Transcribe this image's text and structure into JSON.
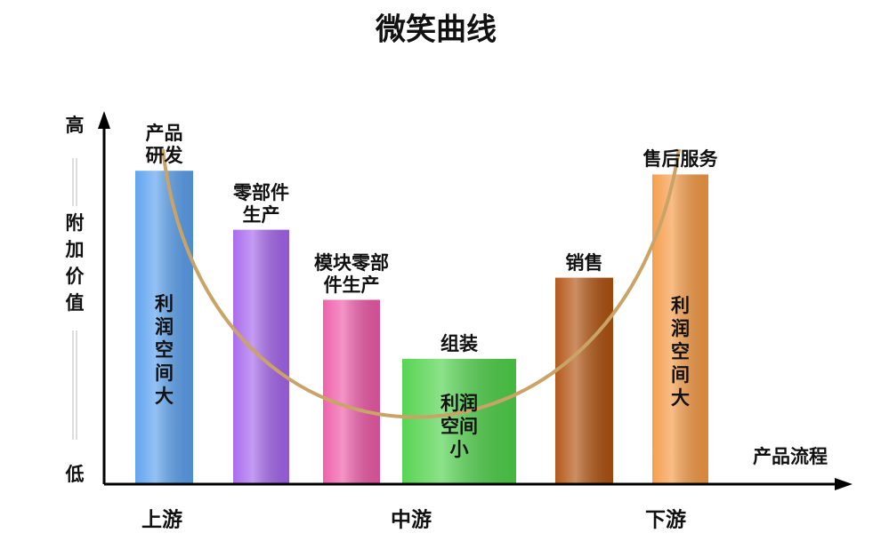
{
  "chart_data": {
    "type": "bar",
    "title": "微笑曲线",
    "categories": [
      "产品研发",
      "零部件生产",
      "模块零部件生产",
      "组装",
      "销售",
      "售后服务"
    ],
    "values": [
      85,
      69,
      50,
      34,
      56,
      84
    ],
    "colors": [
      "#5aa0ee",
      "#a565ec",
      "#ee5aa8",
      "#4fd24a",
      "#b0520f",
      "#f59a45"
    ],
    "bar_notes": [
      "利润空间大",
      null,
      null,
      "利润空间小",
      null,
      "利润空间大"
    ],
    "ylim": [
      0,
      100
    ],
    "y_axis_top": "高",
    "y_axis_label": "附加价值",
    "y_axis_bottom": "低",
    "x_axis_label": "产品流程",
    "stages": [
      "上游",
      "中游",
      "下游"
    ]
  }
}
